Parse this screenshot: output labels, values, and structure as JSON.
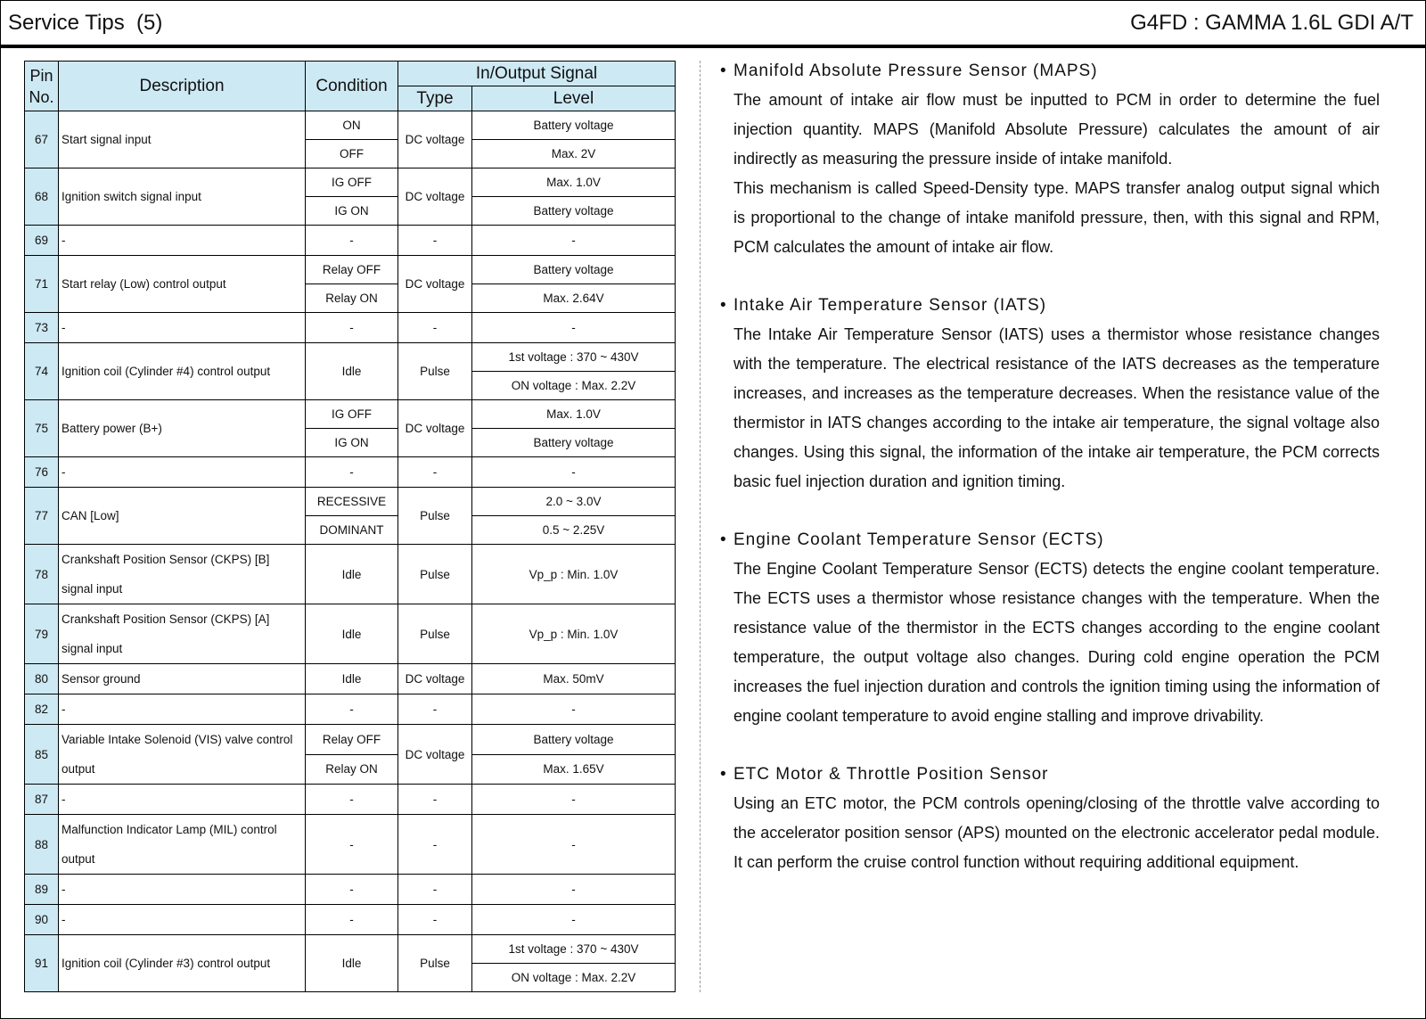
{
  "header": {
    "title": "Service Tips  (5)",
    "model": "G4FD : GAMMA 1.6L GDI A/T"
  },
  "table": {
    "headers": {
      "pin": "Pin No.",
      "description": "Description",
      "condition": "Condition",
      "signal": "In/Output Signal",
      "type": "Type",
      "level": "Level"
    },
    "rows": [
      {
        "pin": "67",
        "desc": "Start signal input",
        "type": "DC voltage",
        "subs": [
          {
            "cond": "ON",
            "level": "Battery voltage"
          },
          {
            "cond": "OFF",
            "level": "Max. 2V"
          }
        ]
      },
      {
        "pin": "68",
        "desc": "Ignition switch signal input",
        "type": "DC voltage",
        "subs": [
          {
            "cond": "IG OFF",
            "level": "Max. 1.0V"
          },
          {
            "cond": "IG ON",
            "level": "Battery voltage"
          }
        ]
      },
      {
        "pin": "69",
        "desc": "-",
        "type": "-",
        "subs": [
          {
            "cond": "-",
            "level": "-"
          }
        ]
      },
      {
        "pin": "71",
        "desc": "Start relay (Low) control output",
        "type": "DC voltage",
        "subs": [
          {
            "cond": "Relay OFF",
            "level": "Battery voltage"
          },
          {
            "cond": "Relay ON",
            "level": "Max. 2.64V"
          }
        ]
      },
      {
        "pin": "73",
        "desc": "-",
        "type": "-",
        "subs": [
          {
            "cond": "-",
            "level": "-"
          }
        ]
      },
      {
        "pin": "74",
        "desc": "Ignition coil (Cylinder #4) control output",
        "type": "Pulse",
        "cond": "Idle",
        "subs": [
          {
            "level": "1st voltage : 370 ~ 430V"
          },
          {
            "level": "ON voltage : Max. 2.2V"
          }
        ]
      },
      {
        "pin": "75",
        "desc": "Battery power (B+)",
        "type": "DC voltage",
        "subs": [
          {
            "cond": "IG OFF",
            "level": "Max. 1.0V"
          },
          {
            "cond": "IG ON",
            "level": "Battery voltage"
          }
        ]
      },
      {
        "pin": "76",
        "desc": "-",
        "type": "-",
        "subs": [
          {
            "cond": "-",
            "level": "-"
          }
        ]
      },
      {
        "pin": "77",
        "desc": "CAN [Low]",
        "type": "Pulse",
        "subs": [
          {
            "cond": "RECESSIVE",
            "level": "2.0 ~ 3.0V"
          },
          {
            "cond": "DOMINANT",
            "level": "0.5 ~ 2.25V"
          }
        ]
      },
      {
        "pin": "78",
        "desc": "Crankshaft Position Sensor (CKPS) [B] signal input",
        "tall": true,
        "type": "Pulse",
        "subs": [
          {
            "cond": "Idle",
            "level": "Vp_p : Min. 1.0V"
          }
        ]
      },
      {
        "pin": "79",
        "desc": "Crankshaft Position Sensor (CKPS) [A] signal input",
        "tall": true,
        "type": "Pulse",
        "subs": [
          {
            "cond": "Idle",
            "level": "Vp_p : Min. 1.0V"
          }
        ]
      },
      {
        "pin": "80",
        "desc": "Sensor ground",
        "type": "DC voltage",
        "subs": [
          {
            "cond": "Idle",
            "level": "Max. 50mV"
          }
        ]
      },
      {
        "pin": "82",
        "desc": "-",
        "type": "-",
        "subs": [
          {
            "cond": "-",
            "level": "-"
          }
        ]
      },
      {
        "pin": "85",
        "desc": "Variable Intake Solenoid (VIS) valve control output",
        "type": "DC voltage",
        "subs": [
          {
            "cond": "Relay OFF",
            "level": "Battery voltage"
          },
          {
            "cond": "Relay ON",
            "level": "Max. 1.65V"
          }
        ]
      },
      {
        "pin": "87",
        "desc": "-",
        "type": "-",
        "subs": [
          {
            "cond": "-",
            "level": "-"
          }
        ]
      },
      {
        "pin": "88",
        "desc": "Malfunction Indicator Lamp (MIL) control output",
        "tall": true,
        "type": "-",
        "subs": [
          {
            "cond": "-",
            "level": "-"
          }
        ]
      },
      {
        "pin": "89",
        "desc": "-",
        "type": "-",
        "subs": [
          {
            "cond": "-",
            "level": "-"
          }
        ]
      },
      {
        "pin": "90",
        "desc": "-",
        "type": "-",
        "subs": [
          {
            "cond": "-",
            "level": "-"
          }
        ]
      },
      {
        "pin": "91",
        "desc": "Ignition coil (Cylinder #3) control output",
        "type": "Pulse",
        "cond": "Idle",
        "subs": [
          {
            "level": "1st voltage : 370 ~ 430V"
          },
          {
            "level": "ON voltage : Max. 2.2V"
          }
        ]
      }
    ]
  },
  "sections": [
    {
      "heading": "Manifold Absolute Pressure Sensor (MAPS)",
      "paragraphs": [
        "The amount of intake air flow must be inputted to PCM in order to determine the fuel injection quantity. MAPS (Manifold Absolute Pressure) calculates the amount of air indirectly as measuring the pressure inside of intake manifold.",
        "This mechanism is called Speed-Density type. MAPS transfer analog output signal which is proportional to the change of intake manifold pressure, then, with this signal and RPM, PCM calculates the amount of intake air flow."
      ]
    },
    {
      "heading": "Intake Air Temperature Sensor (IATS)",
      "paragraphs": [
        "The Intake Air Temperature Sensor (IATS) uses a thermistor whose resistance changes with the temperature. The electrical resistance of the IATS decreases as the temperature increases, and increases as the temperature decreases. When the resistance value of the thermistor in IATS changes according to the intake air temperature, the signal voltage also changes. Using this signal, the information of the intake air temperature, the PCM corrects basic fuel injection duration and ignition timing."
      ]
    },
    {
      "heading": "Engine Coolant Temperature Sensor (ECTS)",
      "paragraphs": [
        "The Engine Coolant Temperature Sensor (ECTS) detects the engine coolant temperature. The ECTS uses a thermistor whose resistance changes with the temperature. When the resistance value of the thermistor in the ECTS changes according to the engine coolant temperature, the output voltage also changes. During cold engine operation the PCM increases the fuel injection duration and controls the ignition timing using the information of engine coolant temperature to avoid engine stalling and improve drivability."
      ]
    },
    {
      "heading": "ETC Motor & Throttle Position Sensor",
      "paragraphs": [
        "Using an ETC motor, the PCM controls opening/closing of the throttle valve according to the accelerator position sensor (APS) mounted on the electronic accelerator pedal module. It can perform the cruise control function without requiring additional equipment."
      ]
    }
  ],
  "colors": {
    "header_fill": "#cde9f3"
  }
}
